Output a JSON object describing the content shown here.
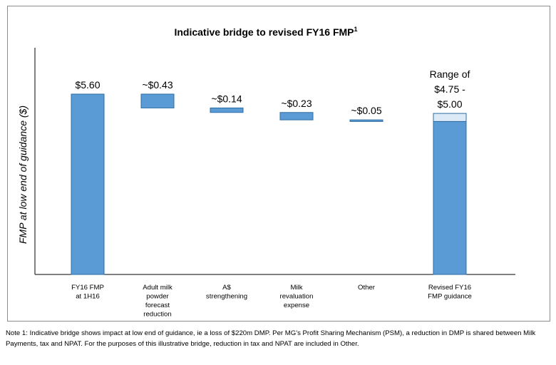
{
  "chart_data": {
    "type": "waterfall",
    "title": "Indicative bridge to revised FY16 FMP",
    "title_superscript": "1",
    "ylabel": "FMP at low end of guidance ($)",
    "ylim": [
      0,
      5.6
    ],
    "categories": [
      "FY16 FMP at 1H16",
      "Adult milk powder forecast reduction",
      "A$ strengthening",
      "Milk revaluation expense",
      "Other",
      "Revised FY16 FMP guidance"
    ],
    "category_lines": [
      [
        "FY16 FMP",
        "at 1H16"
      ],
      [
        "Adult milk",
        "powder",
        "forecast",
        "reduction"
      ],
      [
        "A$",
        "strengthening"
      ],
      [
        "Milk",
        "revaluation",
        "expense"
      ],
      [
        "Other"
      ],
      [
        "Revised FY16",
        "FMP guidance"
      ]
    ],
    "values": [
      5.6,
      -0.43,
      -0.14,
      -0.23,
      -0.05,
      4.75
    ],
    "range_top": 5.0,
    "data_labels": [
      "$5.60",
      "~$0.43",
      "~$0.14",
      "~$0.23",
      "~$0.05",
      "Range of $4.75 - $5.00"
    ],
    "data_label_lines": [
      [
        "$5.60"
      ],
      [
        "~$0.43"
      ],
      [
        "~$0.14"
      ],
      [
        "~$0.23"
      ],
      [
        "~$0.05"
      ],
      [
        "Range of",
        "$4.75 -",
        "$5.00"
      ]
    ],
    "colors": {
      "bar": "#5B9BD5",
      "bar_edge": "#2E6DA4",
      "range": "#DCE9F6",
      "axis": "#000000"
    }
  },
  "footnote": "Note 1: Indicative bridge shows impact at low end of guidance, ie a loss of $220m DMP. Per MG's Profit Sharing Mechanism (PSM), a reduction in DMP is shared between Milk Payments, tax and NPAT. For the purposes of this illustrative bridge, reduction in tax and NPAT are included in Other."
}
